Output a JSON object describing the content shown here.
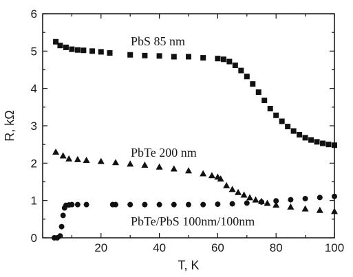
{
  "chart_data": {
    "type": "scatter",
    "title": "",
    "xlabel": "T, K",
    "ylabel": "R, kΩ",
    "xlim": [
      0,
      100
    ],
    "ylim": [
      0,
      6
    ],
    "x_ticks": [
      "20",
      "40",
      "60",
      "80",
      "100"
    ],
    "y_ticks": [
      "0",
      "1",
      "2",
      "3",
      "4",
      "5",
      "6"
    ],
    "grid": false,
    "annotations": [
      "PbS 85 nm",
      "PbTe 200 nm",
      "PbTe/PbS 100nm/100nm"
    ],
    "series": [
      {
        "name": "PbS 85 nm",
        "marker": "square",
        "x": [
          4.5,
          6,
          8,
          10,
          12,
          14,
          17,
          20,
          23,
          30,
          35,
          40,
          45,
          50,
          55,
          60,
          62,
          64,
          66,
          68,
          70,
          72,
          74,
          76,
          78,
          80,
          82,
          84,
          86,
          88,
          90,
          92,
          94,
          96,
          98,
          100
        ],
        "values": [
          5.25,
          5.15,
          5.1,
          5.05,
          5.03,
          5.02,
          5.0,
          4.98,
          4.95,
          4.9,
          4.88,
          4.87,
          4.85,
          4.85,
          4.82,
          4.8,
          4.78,
          4.72,
          4.62,
          4.48,
          4.32,
          4.12,
          3.9,
          3.68,
          3.46,
          3.28,
          3.12,
          2.98,
          2.86,
          2.76,
          2.68,
          2.62,
          2.57,
          2.53,
          2.5,
          2.48
        ]
      },
      {
        "name": "PbTe 200 nm",
        "marker": "triangle",
        "x": [
          4.5,
          7,
          9,
          12,
          15,
          20,
          25,
          30,
          35,
          40,
          45,
          50,
          55,
          58,
          60,
          61,
          63,
          65,
          67,
          69,
          71,
          73,
          75,
          77,
          80,
          85,
          90,
          95,
          100
        ],
        "values": [
          2.3,
          2.2,
          2.12,
          2.1,
          2.08,
          2.05,
          2.02,
          1.98,
          1.95,
          1.9,
          1.85,
          1.8,
          1.72,
          1.67,
          1.63,
          1.58,
          1.4,
          1.3,
          1.22,
          1.15,
          1.08,
          1.02,
          0.98,
          0.93,
          0.88,
          0.83,
          0.78,
          0.74,
          0.71
        ]
      },
      {
        "name": "PbTe/PbS 100nm/100nm",
        "marker": "circle",
        "x": [
          4.0,
          5.0,
          6.0,
          6.5,
          7.0,
          7.5,
          8.0,
          9.0,
          10,
          12,
          15,
          24,
          25,
          30,
          35,
          40,
          45,
          50,
          55,
          60,
          65,
          70,
          75,
          80,
          85,
          90,
          95,
          100
        ],
        "values": [
          0.0,
          0.0,
          0.05,
          0.3,
          0.6,
          0.8,
          0.87,
          0.88,
          0.89,
          0.89,
          0.89,
          0.89,
          0.89,
          0.89,
          0.89,
          0.89,
          0.89,
          0.89,
          0.89,
          0.9,
          0.91,
          0.93,
          0.96,
          0.99,
          1.02,
          1.05,
          1.08,
          1.11
        ]
      }
    ]
  }
}
